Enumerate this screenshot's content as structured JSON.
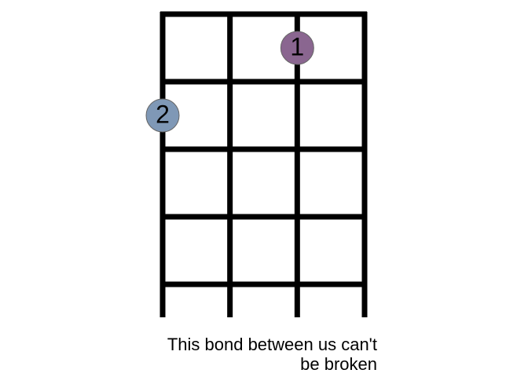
{
  "diagram": {
    "strings": 4,
    "frets": 5,
    "markers": [
      {
        "label": "1",
        "string": 3,
        "fret": 1,
        "color": "#8a6690"
      },
      {
        "label": "2",
        "string": 1,
        "fret": 2,
        "color": "#7f98b6"
      }
    ],
    "colors": {
      "lines": "#000000",
      "marker_stroke": "#666666",
      "marker_text": "#000000"
    }
  },
  "caption": {
    "line1": "This bond between us can't",
    "line2": "be broken"
  }
}
